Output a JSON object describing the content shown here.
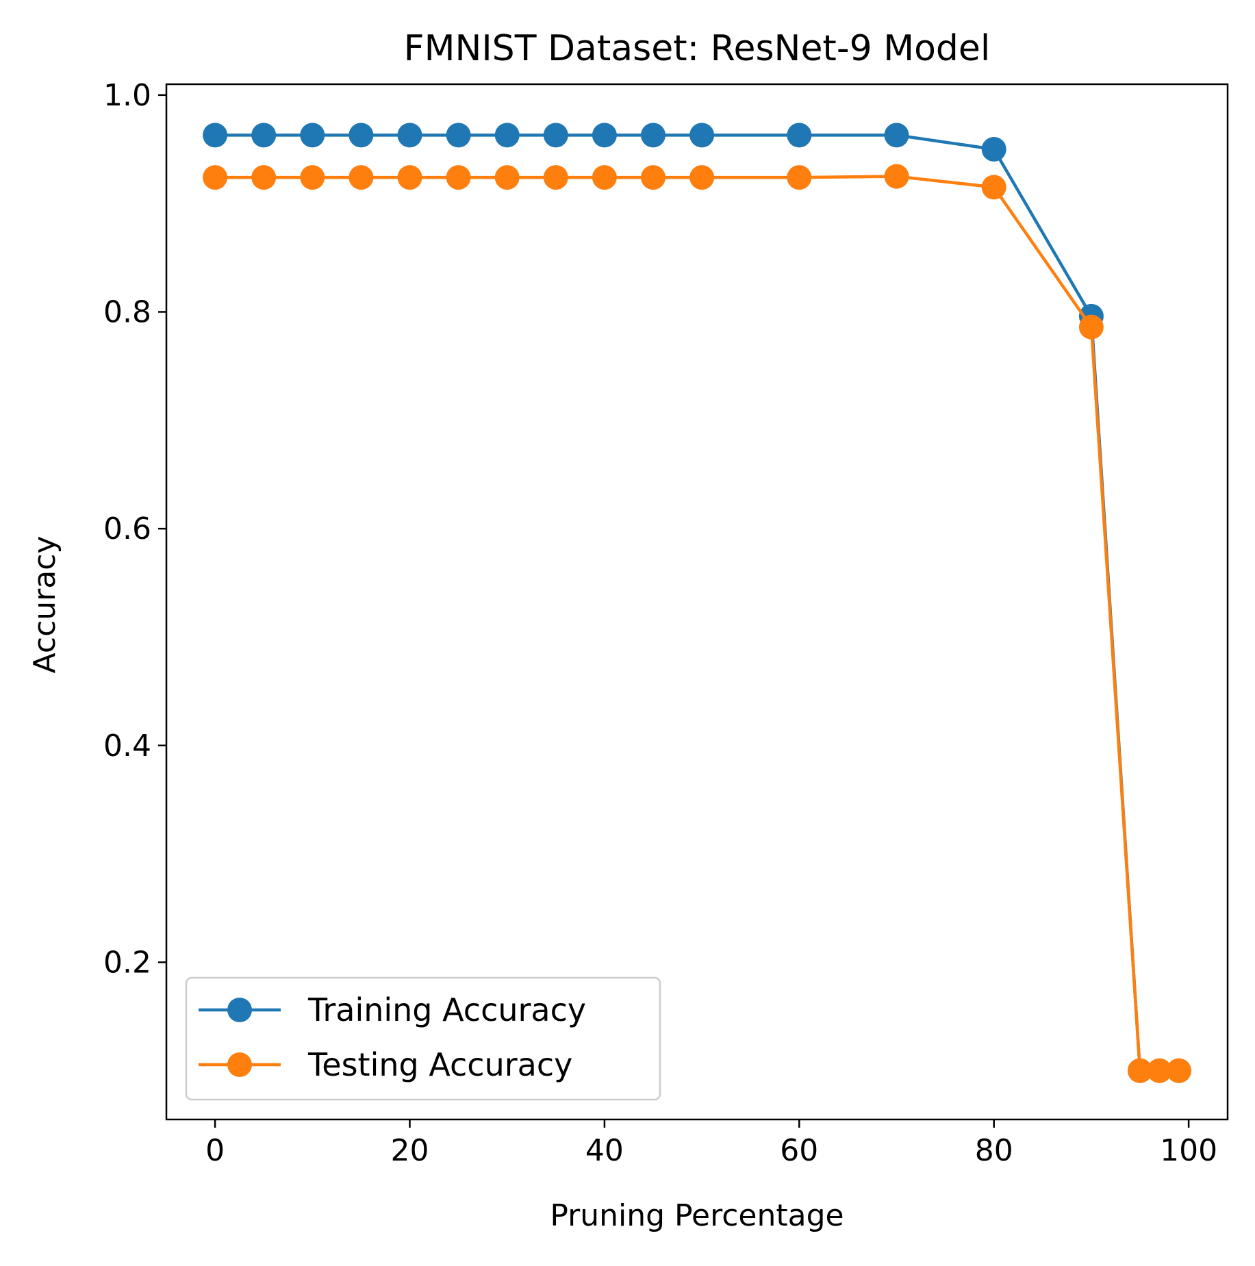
{
  "chart_data": {
    "type": "line",
    "title": "FMNIST Dataset: ResNet-9 Model",
    "xlabel": "Pruning Percentage",
    "ylabel": "Accuracy",
    "xlim": [
      -5,
      104
    ],
    "ylim": [
      0.055,
      1.01
    ],
    "xticks": [
      0,
      20,
      40,
      60,
      80,
      100
    ],
    "xtick_labels": [
      "0",
      "20",
      "40",
      "60",
      "80",
      "100"
    ],
    "yticks": [
      0.2,
      0.4,
      0.6,
      0.8,
      1.0
    ],
    "ytick_labels": [
      "0.2",
      "0.4",
      "0.6",
      "0.8",
      "1.0"
    ],
    "grid": false,
    "legend_position": "lower-left",
    "x": [
      0,
      5,
      10,
      15,
      20,
      25,
      30,
      35,
      40,
      45,
      50,
      60,
      70,
      80,
      90,
      95,
      97,
      99
    ],
    "series": [
      {
        "name": "Training Accuracy",
        "color": "#1f77b4",
        "marker": "circle",
        "values": [
          0.963,
          0.963,
          0.963,
          0.963,
          0.963,
          0.963,
          0.963,
          0.963,
          0.963,
          0.963,
          0.963,
          0.963,
          0.963,
          0.95,
          0.796,
          0.1,
          0.1,
          0.1
        ]
      },
      {
        "name": "Testing Accuracy",
        "color": "#ff7f0e",
        "marker": "circle",
        "values": [
          0.924,
          0.924,
          0.924,
          0.924,
          0.924,
          0.924,
          0.924,
          0.924,
          0.924,
          0.924,
          0.924,
          0.924,
          0.925,
          0.915,
          0.786,
          0.1,
          0.1,
          0.1
        ]
      }
    ]
  }
}
